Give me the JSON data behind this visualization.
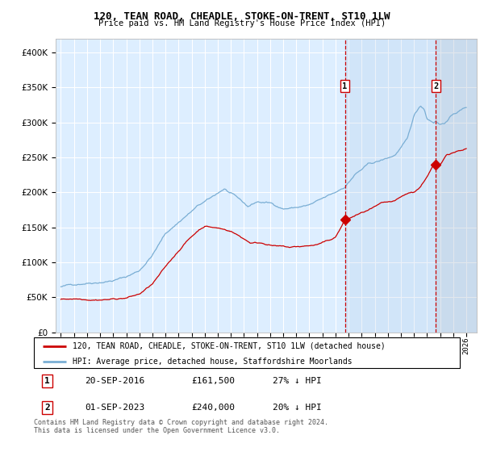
{
  "title": "120, TEAN ROAD, CHEADLE, STOKE-ON-TRENT, ST10 1LW",
  "subtitle": "Price paid vs. HM Land Registry's House Price Index (HPI)",
  "legend_line1": "120, TEAN ROAD, CHEADLE, STOKE-ON-TRENT, ST10 1LW (detached house)",
  "legend_line2": "HPI: Average price, detached house, Staffordshire Moorlands",
  "annotation1_label": "1",
  "annotation1_date": "20-SEP-2016",
  "annotation1_price": "£161,500",
  "annotation1_note": "27% ↓ HPI",
  "annotation2_label": "2",
  "annotation2_date": "01-SEP-2023",
  "annotation2_price": "£240,000",
  "annotation2_note": "20% ↓ HPI",
  "footer1": "Contains HM Land Registry data © Crown copyright and database right 2024.",
  "footer2": "This data is licensed under the Open Government Licence v3.0.",
  "hpi_color": "#7aaed4",
  "price_color": "#cc0000",
  "background_plot": "#ddeeff",
  "vline_color": "#cc0000",
  "grid_color": "#ffffff",
  "ylim": [
    0,
    420000
  ],
  "yticks": [
    0,
    50000,
    100000,
    150000,
    200000,
    250000,
    300000,
    350000,
    400000
  ],
  "marker1_x": 2016.72,
  "marker1_y": 161500,
  "marker2_x": 2023.67,
  "marker2_y": 240000,
  "xmin": 1994.6,
  "xmax": 2026.8
}
